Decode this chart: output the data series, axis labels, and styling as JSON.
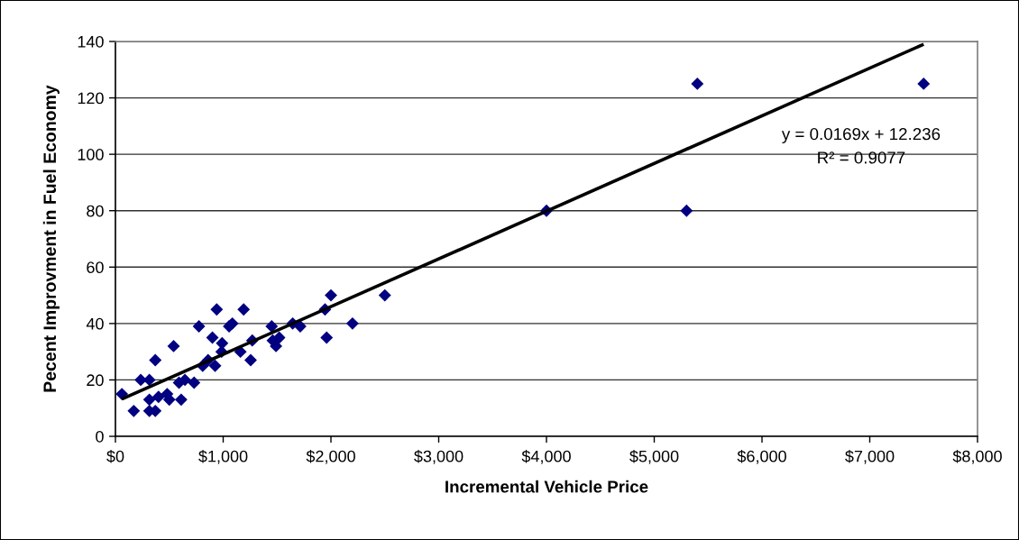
{
  "chart_data": {
    "type": "scatter",
    "xlabel": "Incremental Vehicle Price",
    "ylabel": "Pecent Improvment in Fuel Economy",
    "annotations": [
      "y = 0.0169x + 12.236",
      "R² = 0.9077"
    ],
    "series": [
      {
        "type": "scatter",
        "color": "#000080",
        "marker": "diamond",
        "x": [
          60,
          170,
          235,
          315,
          315,
          315,
          370,
          370,
          400,
          480,
          500,
          540,
          590,
          610,
          645,
          730,
          775,
          810,
          860,
          900,
          925,
          940,
          985,
          990,
          1055,
          1085,
          1160,
          1190,
          1255,
          1270,
          1450,
          1460,
          1490,
          1520,
          1645,
          1715,
          1945,
          1960,
          2000,
          2200,
          2500,
          4000,
          5300,
          5400,
          7500
        ],
        "values": [
          15,
          9,
          20,
          20,
          13,
          9,
          9,
          27,
          14,
          15,
          13,
          32,
          19,
          13,
          20,
          19,
          39,
          25,
          27,
          35,
          25,
          45,
          30,
          33,
          39,
          40,
          30,
          45,
          27,
          34,
          39,
          34,
          32,
          35,
          40,
          39,
          45,
          35,
          50,
          40,
          50,
          80,
          80,
          125,
          125
        ]
      },
      {
        "type": "line",
        "color": "#000000",
        "marker": "none",
        "line_style": "solid",
        "x": [
          60,
          7500
        ],
        "values": [
          13.2,
          139
        ]
      }
    ],
    "xlim": [
      0,
      8000
    ],
    "xticks": [
      {
        "value": 0,
        "label": "$0"
      },
      {
        "value": 1000,
        "label": "$1,000"
      },
      {
        "value": 2000,
        "label": "$2,000"
      },
      {
        "value": 3000,
        "label": "$3,000"
      },
      {
        "value": 4000,
        "label": "$4,000"
      },
      {
        "value": 5000,
        "label": "$5,000"
      },
      {
        "value": 6000,
        "label": "$6,000"
      },
      {
        "value": 7000,
        "label": "$7,000"
      },
      {
        "value": 8000,
        "label": "$8,000"
      }
    ],
    "ylim": [
      0,
      140
    ],
    "yticks": [
      0,
      20,
      40,
      60,
      80,
      100,
      120,
      140
    ],
    "grid": "y"
  }
}
